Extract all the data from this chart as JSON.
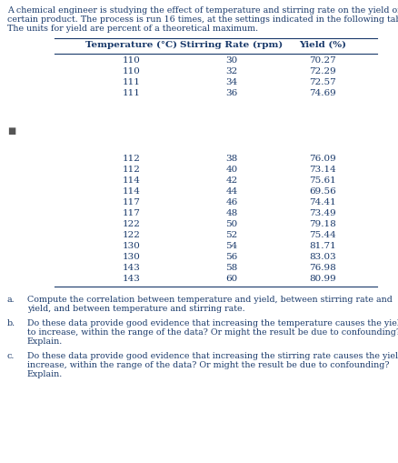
{
  "intro_text_lines": [
    "A chemical engineer is studying the effect of temperature and stirring rate on the yield of a",
    "certain product. The process is run 16 times, at the settings indicated in the following table.",
    "The units for yield are percent of a theoretical maximum."
  ],
  "col_headers": [
    "Temperature (°C)",
    "Stirring Rate (rpm)",
    "Yield (%)"
  ],
  "table_data_top": [
    [
      110,
      30,
      "70.27"
    ],
    [
      110,
      32,
      "72.29"
    ],
    [
      111,
      34,
      "72.57"
    ],
    [
      111,
      36,
      "74.69"
    ]
  ],
  "table_data_bottom": [
    [
      112,
      38,
      "76.09"
    ],
    [
      112,
      40,
      "73.14"
    ],
    [
      114,
      42,
      "75.61"
    ],
    [
      114,
      44,
      "69.56"
    ],
    [
      117,
      46,
      "74.41"
    ],
    [
      117,
      48,
      "73.49"
    ],
    [
      122,
      50,
      "79.18"
    ],
    [
      122,
      52,
      "75.44"
    ],
    [
      130,
      54,
      "81.71"
    ],
    [
      130,
      56,
      "83.03"
    ],
    [
      143,
      58,
      "76.98"
    ],
    [
      143,
      60,
      "80.99"
    ]
  ],
  "questions": [
    {
      "label": "a.",
      "lines": [
        "Compute the correlation between temperature and yield, between stirring rate and",
        "yield, and between temperature and stirring rate."
      ]
    },
    {
      "label": "b.",
      "lines": [
        "Do these data provide good evidence that increasing the temperature causes the yield",
        "to increase, within the range of the data? Or might the result be due to confounding?",
        "Explain."
      ]
    },
    {
      "label": "c.",
      "lines": [
        "Do these data provide good evidence that increasing the stirring rate causes the yield to",
        "increase, within the range of the data? Or might the result be due to confounding?",
        "Explain."
      ]
    }
  ],
  "text_color": "#1a3a6b",
  "bg_color": "#ffffff",
  "fig_width": 4.38,
  "fig_height": 5.09,
  "dpi": 100
}
